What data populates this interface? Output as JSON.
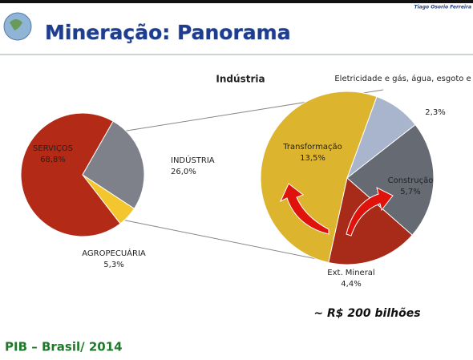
{
  "header": {
    "title": "Mineração: Panorama",
    "author": "Tiago Osorio Ferreira"
  },
  "chart_data": [
    {
      "type": "pie",
      "categories": [
        "SERVIÇOS",
        "INDÚSTRIA",
        "AGROPECUÁRIA"
      ],
      "values": [
        68.8,
        26.0,
        5.3
      ],
      "value_labels": [
        "68,8%",
        "26,0%",
        "5,3%"
      ],
      "colors": [
        "#b32b17",
        "#7e8189",
        "#f2c62c"
      ]
    },
    {
      "type": "pie",
      "title": "Indústria",
      "categories": [
        "Transformação",
        "Eletricidade e gás, água, esgoto e limpeza urbana",
        "Construção",
        "Ext. Mineral"
      ],
      "values": [
        13.5,
        2.3,
        5.7,
        4.4
      ],
      "value_labels": [
        "13,5%",
        "2,3%",
        "5,7%",
        "4,4%"
      ],
      "colors": [
        "#ddb42e",
        "#a9b5cc",
        "#666a72",
        "#a82a18"
      ]
    }
  ],
  "annotation": "~ R$ 200 bilhões",
  "footer": "PIB – Brasil/ 2014"
}
